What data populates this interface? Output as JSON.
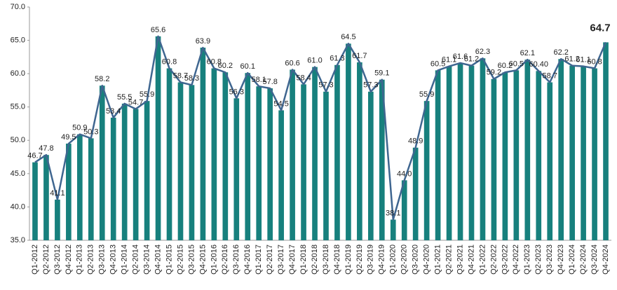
{
  "chart_data": {
    "type": "bar",
    "categories": [
      "Q1-2012",
      "Q2-2012",
      "Q3-2012",
      "Q4-2012",
      "Q1-2013",
      "Q2-2013",
      "Q3-2013",
      "Q4-2013",
      "Q1-2014",
      "Q2-2014",
      "Q3-2014",
      "Q4-2014",
      "Q1-2015",
      "Q2-2015",
      "Q3-2015",
      "Q4-2015",
      "Q1-2016",
      "Q2-2016",
      "Q3-2016",
      "Q4-2016",
      "Q1-2017",
      "Q2-2017",
      "Q3-2017",
      "Q4-2017",
      "Q1-2018",
      "Q2-2018",
      "Q3-2018",
      "Q4-2018",
      "Q1-2019",
      "Q2-2019",
      "Q3-2019",
      "Q4-2019",
      "Q1-2020",
      "Q2-2020",
      "Q3-2020",
      "Q4-2020",
      "Q1-2021",
      "Q2-2021",
      "Q3-2021",
      "Q4-2021",
      "Q1-2022",
      "Q2-2022",
      "Q3-2022",
      "Q4-2022",
      "Q1-2023",
      "Q2-2023",
      "Q3-2023",
      "Q4-2023",
      "Q1-2024",
      "Q2-2024",
      "Q3-2024",
      "Q4-2024"
    ],
    "values": [
      46.7,
      47.8,
      41.1,
      49.5,
      50.9,
      50.3,
      58.2,
      53.4,
      55.5,
      54.7,
      55.9,
      65.6,
      60.8,
      58.7,
      58.3,
      63.9,
      60.8,
      60.2,
      56.3,
      60.1,
      58.1,
      57.8,
      54.5,
      60.6,
      58.4,
      61.0,
      57.3,
      61.3,
      64.5,
      61.7,
      57.3,
      59.1,
      38.1,
      44.0,
      48.9,
      55.9,
      60.5,
      61.1,
      61.6,
      61.2,
      62.3,
      59.2,
      60.2,
      60.5,
      62.1,
      60.4,
      58.7,
      62.2,
      61.2,
      61.1,
      60.8,
      64.7
    ],
    "value_labels": [
      "46.7",
      "47.8",
      "41.1",
      "49.5",
      "50.9",
      "50.3",
      "58.2",
      "53.4",
      "55.5",
      "54.7",
      "55.9",
      "65.6",
      "60.8",
      "58.7",
      "58.3",
      "63.9",
      "60.8",
      "60.2",
      "56.3",
      "60.1",
      "58.1",
      "57.8",
      "54.5",
      "60.6",
      "58.4",
      "61.0",
      "57.3",
      "61.3",
      "64.5",
      "61.7",
      "57.3",
      "59.1",
      "38.1",
      "44.0",
      "48.9",
      "55.9",
      "60.5",
      "61.1",
      "61.6",
      "61.2",
      "62.3",
      "59.2",
      "60.2",
      "60.5",
      "62.1",
      "60.40",
      "58.7",
      "62.2",
      "61.2",
      "61.1",
      "60.8",
      "64.7"
    ],
    "color": "#17807d",
    "line_color": "#3f6690",
    "ylim": [
      35,
      70
    ],
    "yticks": [
      {
        "value": 35,
        "label": "35.0"
      },
      {
        "value": 40,
        "label": "40.0"
      },
      {
        "value": 45,
        "label": "45.0"
      },
      {
        "value": 50,
        "label": "50.0"
      },
      {
        "value": 55,
        "label": "55.0"
      },
      {
        "value": 60,
        "label": "60.0"
      },
      {
        "value": 65,
        "label": "65.0"
      },
      {
        "value": 70,
        "label": "70.0"
      }
    ],
    "grid": false
  }
}
